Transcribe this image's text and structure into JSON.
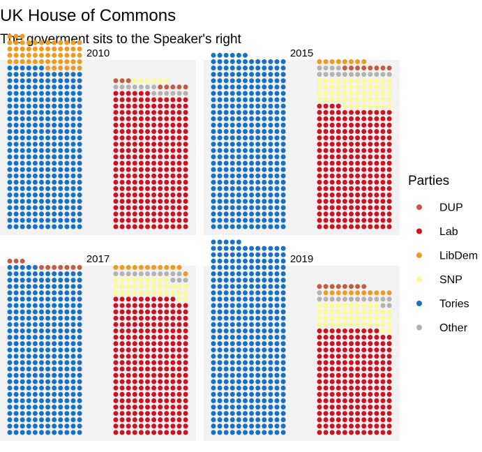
{
  "chart_data": {
    "type": "parliament-waffle",
    "title": "UK House of Commons",
    "subtitle": "The goverment sits to the Speaker's right",
    "legend": {
      "title": "Parties",
      "position": "right",
      "items": [
        {
          "name": "DUP",
          "color": "#c75a43"
        },
        {
          "name": "Lab",
          "color": "#d0111f"
        },
        {
          "name": "LibDem",
          "color": "#f19a1e"
        },
        {
          "name": "SNP",
          "color": "#fbfb8f"
        },
        {
          "name": "Tories",
          "color": "#1671c9"
        },
        {
          "name": "Other",
          "color": "#b3b3b3"
        }
      ]
    },
    "panels": [
      {
        "year": "2010",
        "government": [
          {
            "party": "Tories",
            "seats": 306
          },
          {
            "party": "LibDem",
            "seats": 57
          }
        ],
        "opposition": [
          {
            "party": "Lab",
            "seats": 258
          },
          {
            "party": "Other",
            "seats": 13
          },
          {
            "party": "DUP",
            "seats": 8
          },
          {
            "party": "SNP",
            "seats": 6
          }
        ]
      },
      {
        "year": "2015",
        "government": [
          {
            "party": "Tories",
            "seats": 330
          }
        ],
        "opposition": [
          {
            "party": "Lab",
            "seats": 232
          },
          {
            "party": "SNP",
            "seats": 56
          },
          {
            "party": "Other",
            "seats": 16
          },
          {
            "party": "DUP",
            "seats": 8
          },
          {
            "party": "LibDem",
            "seats": 8
          }
        ]
      },
      {
        "year": "2017",
        "government": [
          {
            "party": "Tories",
            "seats": 317
          },
          {
            "party": "DUP",
            "seats": 10
          }
        ],
        "opposition": [
          {
            "party": "Lab",
            "seats": 262
          },
          {
            "party": "SNP",
            "seats": 35
          },
          {
            "party": "Other",
            "seats": 14
          },
          {
            "party": "LibDem",
            "seats": 12
          }
        ]
      },
      {
        "year": "2019",
        "government": [
          {
            "party": "Tories",
            "seats": 365
          }
        ],
        "opposition": [
          {
            "party": "Lab",
            "seats": 202
          },
          {
            "party": "SNP",
            "seats": 48
          },
          {
            "party": "Other",
            "seats": 15
          },
          {
            "party": "LibDem",
            "seats": 11
          },
          {
            "party": "DUP",
            "seats": 8
          }
        ]
      }
    ]
  }
}
